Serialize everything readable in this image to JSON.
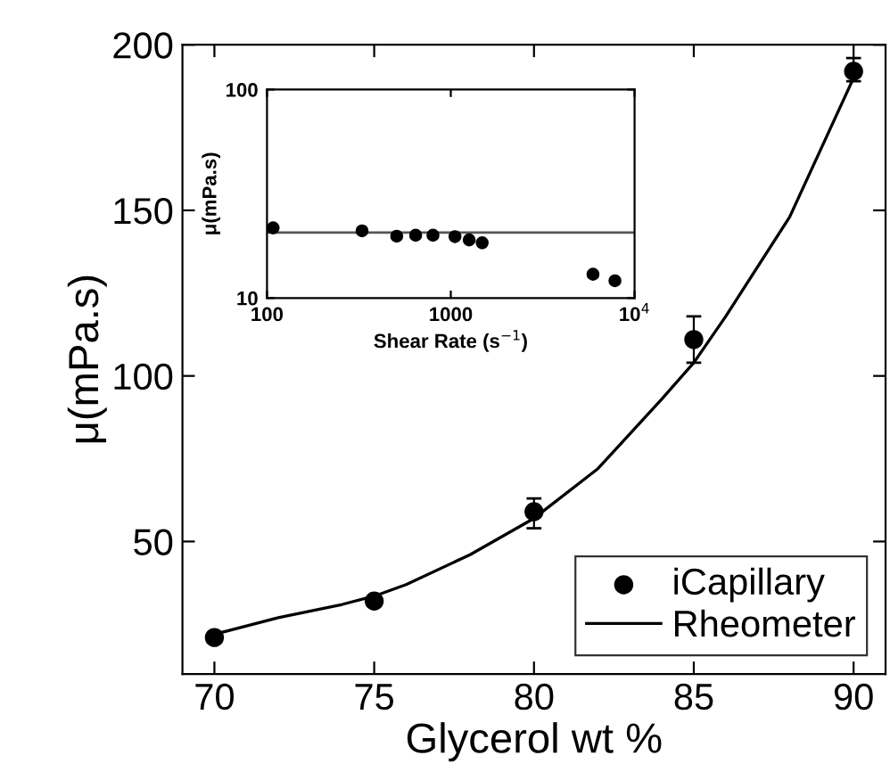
{
  "chart_data": [
    {
      "type": "scatter",
      "xlabel": "Glycerol wt %",
      "ylabel": "μ(mPa.s)",
      "xlim": [
        69,
        91
      ],
      "ylim": [
        10,
        200
      ],
      "xticks": [
        70,
        75,
        80,
        85,
        90
      ],
      "yticks": [
        50,
        100,
        150,
        200
      ],
      "legend": "bottom right",
      "grid": false,
      "series": [
        {
          "name": "iCapillary",
          "marker": "circle",
          "color": "#000000",
          "x": [
            70,
            75,
            80,
            85,
            90
          ],
          "values": [
            21,
            32,
            59,
            111,
            192
          ],
          "errors": [
            null,
            null,
            [
              54,
              63
            ],
            [
              104,
              118
            ],
            [
              189,
              196
            ]
          ]
        },
        {
          "name": "Rheometer",
          "type": "line",
          "color": "#000000",
          "x": [
            70,
            72,
            74,
            75,
            76,
            78,
            80,
            82,
            84,
            85,
            86,
            88,
            90
          ],
          "values": [
            22,
            27,
            31,
            33.5,
            37,
            46,
            57,
            72,
            93,
            104,
            118,
            148,
            190
          ]
        }
      ]
    },
    {
      "type": "scatter",
      "xlabel": "Shear Rate (s$^{−1}$)",
      "ylabel": "μ(mPa.s)",
      "log": "xy",
      "xlim": [
        100,
        10000
      ],
      "ylim": [
        10,
        100
      ],
      "xticks": [
        100,
        1000,
        {
          "value": 10000,
          "label": "10$^{4}$"
        }
      ],
      "yticks": [
        10,
        100
      ],
      "grid": false,
      "series": [
        {
          "marker": "circle",
          "color": "#000000",
          "x": [
            108,
            329,
            508,
            644,
            800,
            1054,
            1259,
            1482,
            5940,
            7820
          ],
          "values": [
            21.7,
            21,
            19.8,
            20,
            20,
            19.7,
            19,
            18.4,
            13,
            12.1
          ]
        },
        {
          "type": "line",
          "color": "#555555",
          "x": [
            100,
            10000
          ],
          "values": [
            20.6,
            20.6
          ]
        }
      ]
    }
  ]
}
